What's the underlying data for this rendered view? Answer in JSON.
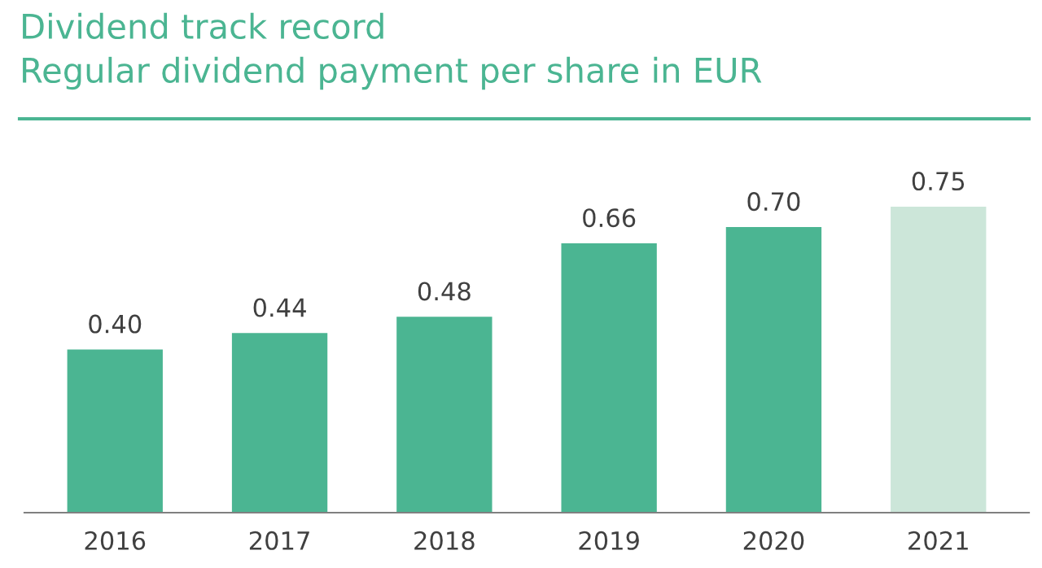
{
  "chart_data": {
    "type": "bar",
    "title": "Dividend track record",
    "subtitle": "Regular dividend payment per share in EUR",
    "categories": [
      "2016",
      "2017",
      "2018",
      "2019",
      "2020",
      "2021"
    ],
    "values": [
      0.4,
      0.44,
      0.48,
      0.66,
      0.7,
      0.75
    ],
    "value_labels": [
      "0.40",
      "0.44",
      "0.48",
      "0.66",
      "0.70",
      "0.75"
    ],
    "colors": [
      "#4bb592",
      "#4bb592",
      "#4bb592",
      "#4bb592",
      "#4bb592",
      "#cce6d9"
    ],
    "grid": false,
    "legend": false
  }
}
